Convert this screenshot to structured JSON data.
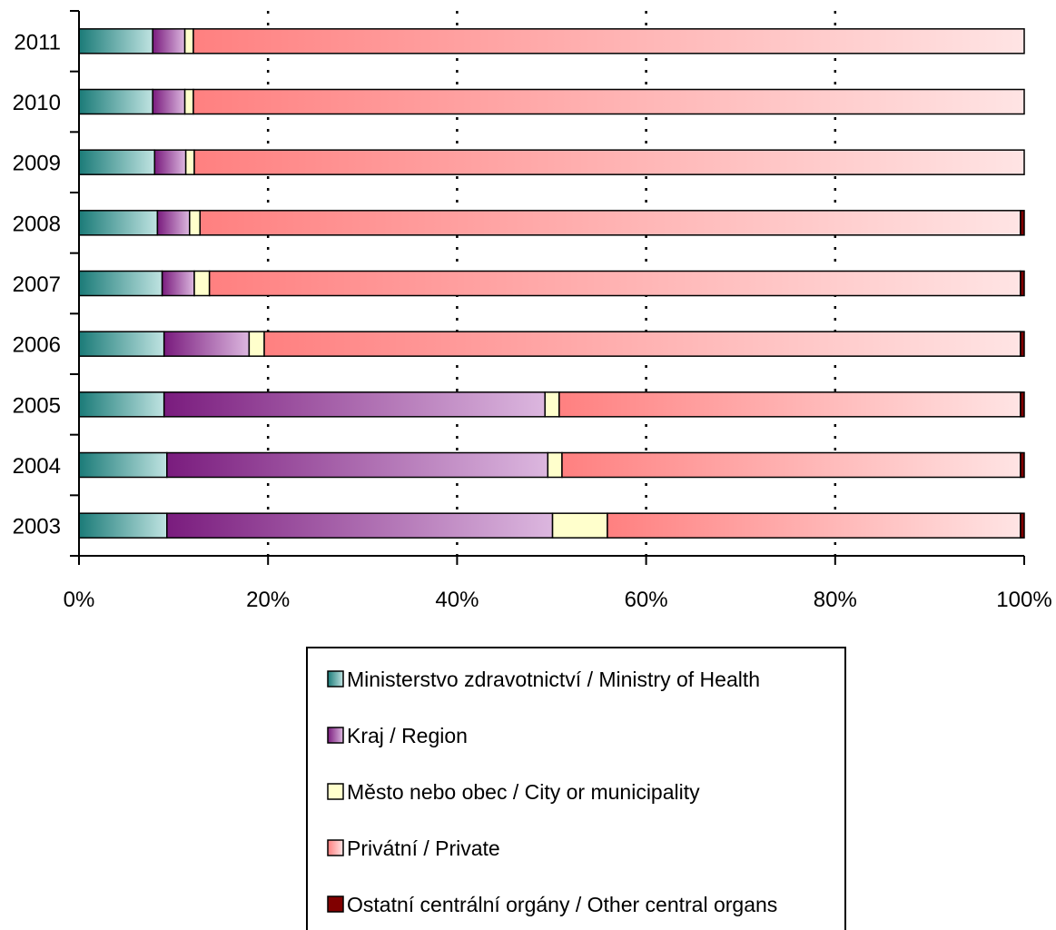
{
  "chart_data": {
    "type": "bar",
    "orientation": "horizontal",
    "stacked": true,
    "percent_stacked": true,
    "categories": [
      "2011",
      "2010",
      "2009",
      "2008",
      "2007",
      "2006",
      "2005",
      "2004",
      "2003"
    ],
    "series": [
      {
        "name": "Ministerstvo zdravotnictví / Ministry of Health",
        "color": "#1b7b78",
        "color_light": "#bfe3e1",
        "values": [
          7.8,
          7.8,
          8.0,
          8.3,
          8.8,
          9.0,
          9.0,
          9.3,
          9.3
        ]
      },
      {
        "name": "Kraj / Region",
        "color": "#7a1c7e",
        "color_light": "#dcb7df",
        "values": [
          3.4,
          3.4,
          3.3,
          3.4,
          3.4,
          9.0,
          40.3,
          40.3,
          40.8
        ]
      },
      {
        "name": "Město nebo obec / City or municipality",
        "color": "#ffffcc",
        "color_light": "#ffffcc",
        "values": [
          0.9,
          0.9,
          0.9,
          1.1,
          1.6,
          1.6,
          1.5,
          1.5,
          5.8
        ]
      },
      {
        "name": "Privátní / Private",
        "color": "#ff8080",
        "color_light": "#ffe4e4",
        "values": [
          87.9,
          87.9,
          87.8,
          86.8,
          85.8,
          80.0,
          48.8,
          48.5,
          43.7
        ]
      },
      {
        "name": "Ostatní centrální orgány / Other central organs",
        "color": "#800000",
        "color_light": "#800000",
        "values": [
          0.0,
          0.0,
          0.0,
          0.4,
          0.4,
          0.4,
          0.4,
          0.4,
          0.4
        ]
      }
    ],
    "xlim": [
      0,
      100
    ],
    "x_ticks": [
      "0%",
      "20%",
      "40%",
      "60%",
      "80%",
      "100%"
    ],
    "grid": "vertical dotted",
    "legend_position": "bottom"
  }
}
